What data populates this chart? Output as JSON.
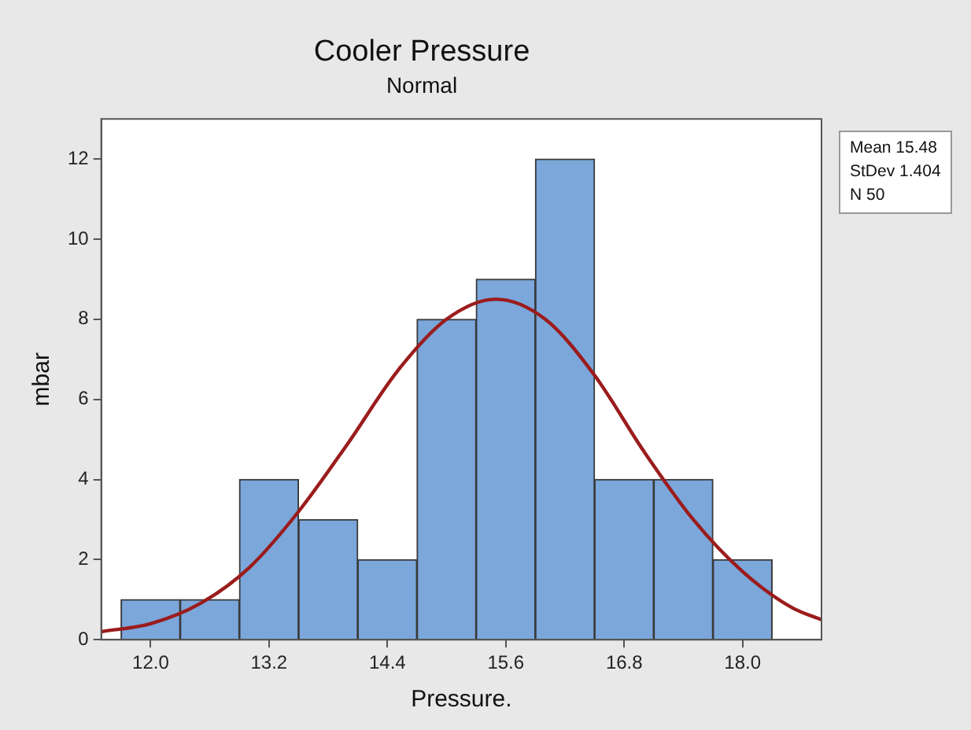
{
  "chart_data": {
    "type": "histogram",
    "title": "Cooler Pressure",
    "subtitle": "Normal",
    "xlabel": "Pressure.",
    "ylabel": "mbar",
    "bins": [
      11.7,
      12.3,
      12.9,
      13.5,
      14.1,
      14.7,
      15.3,
      15.9,
      16.5,
      17.1,
      17.7,
      18.3
    ],
    "values": [
      1,
      1,
      4,
      3,
      2,
      8,
      9,
      12,
      4,
      4,
      2
    ],
    "color": "#7ba7db",
    "series": [
      {
        "type": "line",
        "x": [
          11.5,
          12.0,
          12.5,
          13.0,
          13.5,
          14.0,
          14.5,
          15.0,
          15.5,
          16.0,
          16.5,
          17.0,
          17.5,
          18.0,
          18.5,
          18.8
        ],
        "values": [
          0.2,
          0.4,
          0.9,
          1.8,
          3.2,
          4.9,
          6.7,
          8.0,
          8.5,
          8.0,
          6.6,
          4.7,
          3.0,
          1.7,
          0.8,
          0.5
        ],
        "color": "#9b1c1c"
      }
    ],
    "xlim": [
      11.5,
      18.8
    ],
    "ylim": [
      0,
      13
    ],
    "xticks": [
      {
        "value": 12,
        "label": "12.0"
      },
      {
        "value": 13.2,
        "label": "13.2"
      },
      {
        "value": 14.4,
        "label": "14.4"
      },
      {
        "value": 15.6,
        "label": "15.6"
      },
      {
        "value": 16.8,
        "label": "16.8"
      },
      {
        "value": 18,
        "label": "18.0"
      }
    ],
    "yticks": [
      0,
      2,
      4,
      6,
      8,
      10,
      12
    ],
    "grid": false,
    "legend": false,
    "marker": "none",
    "line_style": "solid",
    "annotations": [
      "Mean 15.48",
      "StDev 1.404",
      "N 50"
    ]
  }
}
